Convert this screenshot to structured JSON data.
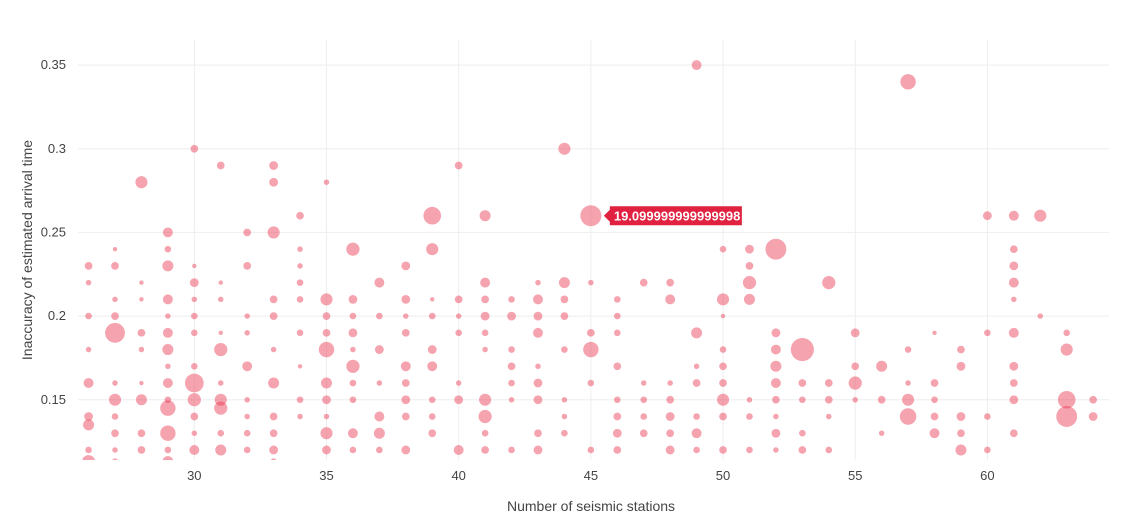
{
  "chart_data": {
    "type": "scatter",
    "xlabel": "Number of seismic stations",
    "ylabel": "Inaccuracy of estimated arrival time",
    "xlim": [
      25.6,
      64.6
    ],
    "ylim": [
      0.114,
      0.365
    ],
    "x_ticks": [
      30,
      35,
      40,
      45,
      50,
      55,
      60
    ],
    "y_ticks": [
      0.15,
      0.2,
      0.25,
      0.3,
      0.35
    ],
    "grid": true,
    "marker_color": "#e8344e",
    "marker_opacity": 0.45,
    "tooltip": {
      "x": 45,
      "y": 0.26,
      "text": "19.099999999999998",
      "color": "#e0213f"
    },
    "points": [
      [
        49,
        0.35,
        9
      ],
      [
        57,
        0.34,
        14
      ],
      [
        44,
        0.3,
        11
      ],
      [
        30,
        0.3,
        7
      ],
      [
        31,
        0.29,
        7
      ],
      [
        33,
        0.29,
        8
      ],
      [
        40,
        0.29,
        7
      ],
      [
        35,
        0.28,
        5
      ],
      [
        33,
        0.28,
        8
      ],
      [
        28,
        0.28,
        11
      ],
      [
        39,
        0.26,
        16
      ],
      [
        41,
        0.26,
        10
      ],
      [
        45,
        0.26,
        19.1
      ],
      [
        34,
        0.26,
        7
      ],
      [
        60,
        0.26,
        8
      ],
      [
        61,
        0.26,
        9
      ],
      [
        62,
        0.26,
        11
      ],
      [
        29,
        0.25,
        9
      ],
      [
        32,
        0.25,
        7
      ],
      [
        33,
        0.25,
        11
      ],
      [
        29,
        0.24,
        6
      ],
      [
        36,
        0.24,
        12
      ],
      [
        34,
        0.24,
        5
      ],
      [
        39,
        0.24,
        11
      ],
      [
        27,
        0.24,
        4
      ],
      [
        50,
        0.24,
        6
      ],
      [
        51,
        0.24,
        8
      ],
      [
        52,
        0.24,
        19
      ],
      [
        61,
        0.24,
        7
      ],
      [
        26,
        0.23,
        7
      ],
      [
        27,
        0.23,
        7
      ],
      [
        29,
        0.23,
        10
      ],
      [
        30,
        0.23,
        4
      ],
      [
        32,
        0.23,
        7
      ],
      [
        34,
        0.23,
        5
      ],
      [
        38,
        0.23,
        8
      ],
      [
        51,
        0.23,
        7
      ],
      [
        61,
        0.23,
        8
      ],
      [
        26,
        0.22,
        5
      ],
      [
        28,
        0.22,
        4
      ],
      [
        30,
        0.22,
        8
      ],
      [
        31,
        0.22,
        4
      ],
      [
        34,
        0.22,
        6
      ],
      [
        37,
        0.22,
        9
      ],
      [
        41,
        0.22,
        9
      ],
      [
        43,
        0.22,
        5
      ],
      [
        44,
        0.22,
        10
      ],
      [
        45,
        0.22,
        5
      ],
      [
        47,
        0.22,
        7
      ],
      [
        48,
        0.22,
        7
      ],
      [
        51,
        0.22,
        12
      ],
      [
        54,
        0.22,
        12
      ],
      [
        61,
        0.22,
        9
      ],
      [
        27,
        0.21,
        5
      ],
      [
        28,
        0.21,
        4
      ],
      [
        29,
        0.21,
        9
      ],
      [
        30,
        0.21,
        5
      ],
      [
        31,
        0.21,
        5
      ],
      [
        33,
        0.21,
        7
      ],
      [
        34,
        0.21,
        6
      ],
      [
        35,
        0.21,
        11
      ],
      [
        36,
        0.21,
        8
      ],
      [
        38,
        0.21,
        8
      ],
      [
        39,
        0.21,
        4
      ],
      [
        40,
        0.21,
        7
      ],
      [
        41,
        0.21,
        7
      ],
      [
        42,
        0.21,
        6
      ],
      [
        43,
        0.21,
        9
      ],
      [
        44,
        0.21,
        7
      ],
      [
        46,
        0.21,
        6
      ],
      [
        48,
        0.21,
        9
      ],
      [
        50,
        0.21,
        11
      ],
      [
        51,
        0.21,
        10
      ],
      [
        61,
        0.21,
        5
      ],
      [
        26,
        0.2,
        6
      ],
      [
        27,
        0.2,
        7
      ],
      [
        29,
        0.2,
        5
      ],
      [
        30,
        0.2,
        6
      ],
      [
        32,
        0.2,
        5
      ],
      [
        33,
        0.2,
        7
      ],
      [
        35,
        0.2,
        7
      ],
      [
        36,
        0.2,
        6
      ],
      [
        37,
        0.2,
        6
      ],
      [
        38,
        0.2,
        5
      ],
      [
        39,
        0.2,
        6
      ],
      [
        40,
        0.2,
        5
      ],
      [
        41,
        0.2,
        8
      ],
      [
        42,
        0.2,
        8
      ],
      [
        43,
        0.2,
        8
      ],
      [
        44,
        0.2,
        7
      ],
      [
        46,
        0.2,
        6
      ],
      [
        50,
        0.2,
        4
      ],
      [
        62,
        0.2,
        5
      ],
      [
        27,
        0.19,
        18
      ],
      [
        28,
        0.19,
        7
      ],
      [
        29,
        0.19,
        9
      ],
      [
        30,
        0.19,
        6
      ],
      [
        31,
        0.19,
        4
      ],
      [
        32,
        0.19,
        5
      ],
      [
        34,
        0.19,
        6
      ],
      [
        35,
        0.19,
        7
      ],
      [
        36,
        0.19,
        8
      ],
      [
        38,
        0.19,
        7
      ],
      [
        40,
        0.19,
        6
      ],
      [
        41,
        0.19,
        6
      ],
      [
        43,
        0.19,
        9
      ],
      [
        45,
        0.19,
        7
      ],
      [
        46,
        0.19,
        6
      ],
      [
        49,
        0.19,
        10
      ],
      [
        52,
        0.19,
        8
      ],
      [
        55,
        0.19,
        8
      ],
      [
        58,
        0.19,
        4
      ],
      [
        60,
        0.19,
        6
      ],
      [
        61,
        0.19,
        9
      ],
      [
        63,
        0.19,
        6
      ],
      [
        26,
        0.18,
        5
      ],
      [
        28,
        0.18,
        5
      ],
      [
        29,
        0.18,
        10
      ],
      [
        31,
        0.18,
        12
      ],
      [
        33,
        0.18,
        5
      ],
      [
        35,
        0.18,
        14
      ],
      [
        36,
        0.18,
        5
      ],
      [
        37,
        0.18,
        8
      ],
      [
        39,
        0.18,
        8
      ],
      [
        41,
        0.18,
        5
      ],
      [
        42,
        0.18,
        6
      ],
      [
        44,
        0.18,
        6
      ],
      [
        45,
        0.18,
        14
      ],
      [
        50,
        0.18,
        6
      ],
      [
        52,
        0.18,
        9
      ],
      [
        53,
        0.18,
        21
      ],
      [
        57,
        0.18,
        6
      ],
      [
        59,
        0.18,
        7
      ],
      [
        63,
        0.18,
        11
      ],
      [
        29,
        0.17,
        5
      ],
      [
        30,
        0.17,
        6
      ],
      [
        32,
        0.17,
        9
      ],
      [
        34,
        0.17,
        4
      ],
      [
        36,
        0.17,
        12
      ],
      [
        38,
        0.17,
        9
      ],
      [
        39,
        0.17,
        9
      ],
      [
        42,
        0.17,
        7
      ],
      [
        43,
        0.17,
        5
      ],
      [
        46,
        0.17,
        7
      ],
      [
        49,
        0.17,
        5
      ],
      [
        50,
        0.17,
        7
      ],
      [
        52,
        0.17,
        10
      ],
      [
        55,
        0.17,
        7
      ],
      [
        56,
        0.17,
        10
      ],
      [
        59,
        0.17,
        8
      ],
      [
        61,
        0.17,
        8
      ],
      [
        26,
        0.16,
        9
      ],
      [
        27,
        0.16,
        5
      ],
      [
        28,
        0.16,
        4
      ],
      [
        29,
        0.16,
        9
      ],
      [
        30,
        0.16,
        17
      ],
      [
        31,
        0.16,
        5
      ],
      [
        33,
        0.16,
        10
      ],
      [
        35,
        0.16,
        10
      ],
      [
        36,
        0.16,
        6
      ],
      [
        37,
        0.16,
        5
      ],
      [
        38,
        0.16,
        7
      ],
      [
        40,
        0.16,
        5
      ],
      [
        42,
        0.16,
        6
      ],
      [
        43,
        0.16,
        8
      ],
      [
        45,
        0.16,
        6
      ],
      [
        47,
        0.16,
        5
      ],
      [
        48,
        0.16,
        5
      ],
      [
        49,
        0.16,
        7
      ],
      [
        50,
        0.16,
        7
      ],
      [
        52,
        0.16,
        9
      ],
      [
        53,
        0.16,
        7
      ],
      [
        54,
        0.16,
        7
      ],
      [
        55,
        0.16,
        12
      ],
      [
        57,
        0.16,
        5
      ],
      [
        58,
        0.16,
        7
      ],
      [
        61,
        0.16,
        7
      ],
      [
        27,
        0.15,
        11
      ],
      [
        28,
        0.15,
        10
      ],
      [
        29,
        0.15,
        6
      ],
      [
        30,
        0.15,
        12
      ],
      [
        31,
        0.15,
        11
      ],
      [
        32,
        0.15,
        5
      ],
      [
        34,
        0.15,
        6
      ],
      [
        35,
        0.15,
        8
      ],
      [
        36,
        0.15,
        6
      ],
      [
        38,
        0.15,
        8
      ],
      [
        39,
        0.15,
        6
      ],
      [
        40,
        0.15,
        8
      ],
      [
        41,
        0.15,
        11
      ],
      [
        42,
        0.15,
        5
      ],
      [
        43,
        0.15,
        8
      ],
      [
        44,
        0.15,
        5
      ],
      [
        46,
        0.15,
        6
      ],
      [
        47,
        0.15,
        6
      ],
      [
        48,
        0.15,
        7
      ],
      [
        50,
        0.15,
        11
      ],
      [
        51,
        0.15,
        5
      ],
      [
        52,
        0.15,
        7
      ],
      [
        53,
        0.15,
        6
      ],
      [
        54,
        0.15,
        7
      ],
      [
        55,
        0.15,
        5
      ],
      [
        56,
        0.15,
        7
      ],
      [
        57,
        0.15,
        11
      ],
      [
        58,
        0.15,
        6
      ],
      [
        61,
        0.15,
        8
      ],
      [
        63,
        0.15,
        16
      ],
      [
        64,
        0.15,
        7
      ],
      [
        26,
        0.14,
        8
      ],
      [
        27,
        0.14,
        6
      ],
      [
        29,
        0.145,
        14
      ],
      [
        30,
        0.14,
        7
      ],
      [
        31,
        0.145,
        12
      ],
      [
        32,
        0.14,
        5
      ],
      [
        33,
        0.14,
        7
      ],
      [
        34,
        0.14,
        5
      ],
      [
        35,
        0.14,
        5
      ],
      [
        37,
        0.14,
        9
      ],
      [
        38,
        0.14,
        7
      ],
      [
        39,
        0.14,
        6
      ],
      [
        41,
        0.14,
        12
      ],
      [
        44,
        0.14,
        5
      ],
      [
        46,
        0.14,
        7
      ],
      [
        47,
        0.14,
        6
      ],
      [
        48,
        0.14,
        8
      ],
      [
        49,
        0.14,
        6
      ],
      [
        50,
        0.14,
        7
      ],
      [
        51,
        0.14,
        6
      ],
      [
        52,
        0.14,
        5
      ],
      [
        54,
        0.14,
        5
      ],
      [
        57,
        0.14,
        15
      ],
      [
        58,
        0.14,
        7
      ],
      [
        59,
        0.14,
        8
      ],
      [
        60,
        0.14,
        6
      ],
      [
        63,
        0.14,
        19
      ],
      [
        64,
        0.14,
        8
      ],
      [
        26,
        0.135,
        10
      ],
      [
        27,
        0.13,
        7
      ],
      [
        28,
        0.13,
        7
      ],
      [
        29,
        0.13,
        14
      ],
      [
        30,
        0.13,
        5
      ],
      [
        31,
        0.13,
        6
      ],
      [
        32,
        0.13,
        6
      ],
      [
        33,
        0.13,
        7
      ],
      [
        35,
        0.13,
        11
      ],
      [
        36,
        0.13,
        9
      ],
      [
        37,
        0.13,
        10
      ],
      [
        39,
        0.13,
        7
      ],
      [
        41,
        0.13,
        6
      ],
      [
        43,
        0.13,
        7
      ],
      [
        44,
        0.13,
        6
      ],
      [
        46,
        0.13,
        8
      ],
      [
        47,
        0.13,
        7
      ],
      [
        48,
        0.13,
        7
      ],
      [
        49,
        0.13,
        9
      ],
      [
        52,
        0.13,
        8
      ],
      [
        53,
        0.13,
        6
      ],
      [
        56,
        0.13,
        5
      ],
      [
        58,
        0.13,
        9
      ],
      [
        59,
        0.13,
        7
      ],
      [
        61,
        0.13,
        7
      ],
      [
        26,
        0.12,
        6
      ],
      [
        27,
        0.12,
        5
      ],
      [
        28,
        0.12,
        7
      ],
      [
        29,
        0.12,
        6
      ],
      [
        30,
        0.12,
        9
      ],
      [
        31,
        0.12,
        10
      ],
      [
        32,
        0.12,
        6
      ],
      [
        33,
        0.12,
        8
      ],
      [
        35,
        0.12,
        8
      ],
      [
        36,
        0.12,
        6
      ],
      [
        37,
        0.12,
        6
      ],
      [
        38,
        0.12,
        8
      ],
      [
        40,
        0.12,
        9
      ],
      [
        41,
        0.12,
        7
      ],
      [
        42,
        0.12,
        6
      ],
      [
        43,
        0.12,
        8
      ],
      [
        45,
        0.12,
        6
      ],
      [
        46,
        0.12,
        7
      ],
      [
        48,
        0.12,
        8
      ],
      [
        49,
        0.12,
        6
      ],
      [
        50,
        0.12,
        7
      ],
      [
        51,
        0.12,
        6
      ],
      [
        52,
        0.12,
        5
      ],
      [
        53,
        0.12,
        7
      ],
      [
        54,
        0.12,
        6
      ],
      [
        59,
        0.12,
        10
      ],
      [
        60,
        0.12,
        6
      ],
      [
        26,
        0.113,
        12
      ],
      [
        27,
        0.113,
        6
      ],
      [
        29,
        0.113,
        10
      ],
      [
        33,
        0.113,
        6
      ]
    ]
  }
}
